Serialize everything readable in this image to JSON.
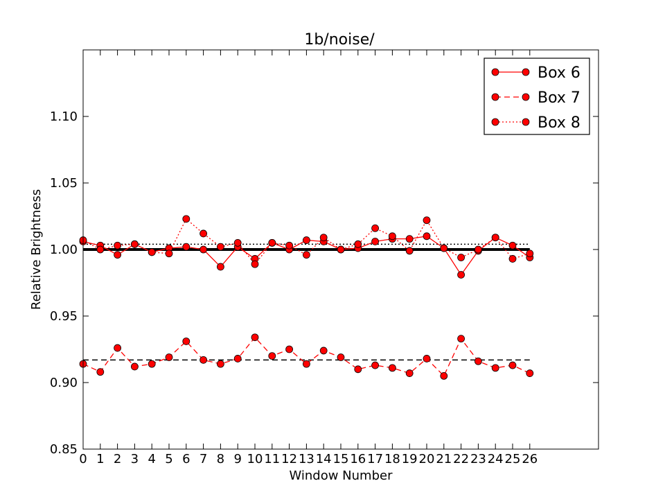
{
  "chart_data": {
    "type": "line",
    "title": "1b/noise/",
    "xlabel": "Window Number",
    "ylabel": "Relative Brightness",
    "xlim": [
      0,
      30
    ],
    "ylim": [
      0.85,
      1.15
    ],
    "x_ticks": [
      0,
      1,
      2,
      3,
      4,
      5,
      6,
      7,
      8,
      9,
      10,
      11,
      12,
      13,
      14,
      15,
      16,
      17,
      18,
      19,
      20,
      21,
      22,
      23,
      24,
      25,
      26
    ],
    "y_ticks": [
      0.85,
      0.9,
      0.95,
      1.0,
      1.05,
      1.1
    ],
    "y_tick_labels": [
      "0.85",
      "0.90",
      "0.95",
      "1.00",
      "1.05",
      "1.10"
    ],
    "grid": false,
    "legend_position": "top-right",
    "x": [
      0,
      1,
      2,
      3,
      4,
      5,
      6,
      7,
      8,
      9,
      10,
      11,
      12,
      13,
      14,
      15,
      16,
      17,
      18,
      19,
      20,
      21,
      22,
      23,
      24,
      25,
      26
    ],
    "series": [
      {
        "name": "Box 6",
        "line_style": "solid",
        "color": "#ff0000",
        "values": [
          1.006,
          1.003,
          0.996,
          1.004,
          0.998,
          1.001,
          1.002,
          1.0,
          0.987,
          1.002,
          0.993,
          1.005,
          1.0,
          1.007,
          1.006,
          1.0,
          1.001,
          1.006,
          1.008,
          1.008,
          1.01,
          1.001,
          0.981,
          0.999,
          1.009,
          1.003,
          0.994
        ],
        "mean": 1.0
      },
      {
        "name": "Box 7",
        "line_style": "dashed",
        "color": "#ff0000",
        "values": [
          0.914,
          0.908,
          0.926,
          0.912,
          0.914,
          0.919,
          0.931,
          0.917,
          0.914,
          0.918,
          0.934,
          0.92,
          0.925,
          0.914,
          0.924,
          0.919,
          0.91,
          0.913,
          0.911,
          0.907,
          0.918,
          0.905,
          0.933,
          0.916,
          0.911,
          0.913,
          0.907
        ],
        "mean": 0.917
      },
      {
        "name": "Box 8",
        "line_style": "dotted",
        "color": "#ff0000",
        "values": [
          1.007,
          1.0,
          1.003,
          1.004,
          0.998,
          0.997,
          1.023,
          1.012,
          1.002,
          1.005,
          0.989,
          1.005,
          1.003,
          0.996,
          1.009,
          1.0,
          1.004,
          1.016,
          1.01,
          0.999,
          1.022,
          1.001,
          0.994,
          1.0,
          1.009,
          0.993,
          0.997
        ],
        "mean": 1.004
      }
    ]
  }
}
